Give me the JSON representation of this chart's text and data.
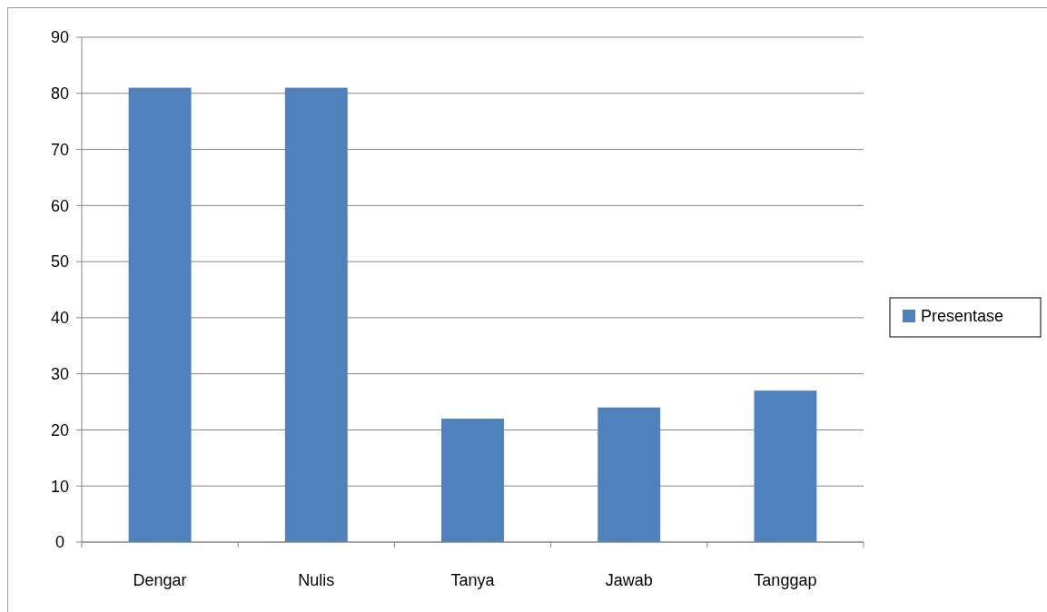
{
  "chart_data": {
    "type": "bar",
    "categories": [
      "Dengar",
      "Nulis",
      "Tanya",
      "Jawab",
      "Tanggap"
    ],
    "series": [
      {
        "name": "Presentase",
        "color": "#4f81bd",
        "values": [
          81,
          81,
          22,
          24,
          27
        ]
      }
    ],
    "ylim": [
      0,
      90
    ],
    "yticks": [
      0,
      10,
      20,
      30,
      40,
      50,
      60,
      70,
      80,
      90
    ],
    "grid": "y",
    "legend": "right"
  }
}
